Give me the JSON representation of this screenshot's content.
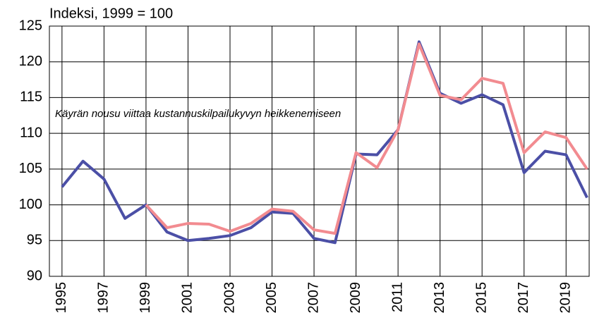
{
  "chart_data": {
    "type": "line",
    "title": "Indeksi, 1999 = 100",
    "annotation": "Käyrän nousu viittaa kustannuskilpailukyvyn heikkenemiseen",
    "x": [
      1995,
      1996,
      1997,
      1998,
      1999,
      2000,
      2001,
      2002,
      2003,
      2004,
      2005,
      2006,
      2007,
      2008,
      2009,
      2010,
      2011,
      2012,
      2013,
      2014,
      2015,
      2016,
      2017,
      2018,
      2019,
      2020
    ],
    "series": [
      {
        "color": "#4b4fa6",
        "values": [
          102.5,
          106.1,
          103.6,
          98.1,
          100,
          96.2,
          95.0,
          95.3,
          95.7,
          96.8,
          99.0,
          98.8,
          95.3,
          94.7,
          107.1,
          107.0,
          110.5,
          122.8,
          115.6,
          114.2,
          115.4,
          114.0,
          104.5,
          107.5,
          107.0,
          101.0
        ]
      },
      {
        "color": "#f28b90",
        "values": [
          null,
          null,
          null,
          null,
          100,
          96.8,
          97.4,
          97.3,
          96.3,
          97.4,
          99.4,
          99.1,
          96.5,
          96.0,
          107.3,
          105.2,
          110.5,
          122.5,
          115.3,
          114.7,
          117.7,
          117.0,
          107.3,
          110.2,
          109.4,
          105.0
        ]
      }
    ],
    "xlim": [
      1994.4,
      2020.1
    ],
    "xticks": [
      1995,
      1997,
      1999,
      2001,
      2003,
      2005,
      2007,
      2009,
      2011,
      2013,
      2015,
      2017,
      2019
    ],
    "ylim": [
      90,
      125
    ],
    "yticks": [
      90,
      95,
      100,
      105,
      110,
      115,
      120,
      125
    ],
    "grid": true
  }
}
